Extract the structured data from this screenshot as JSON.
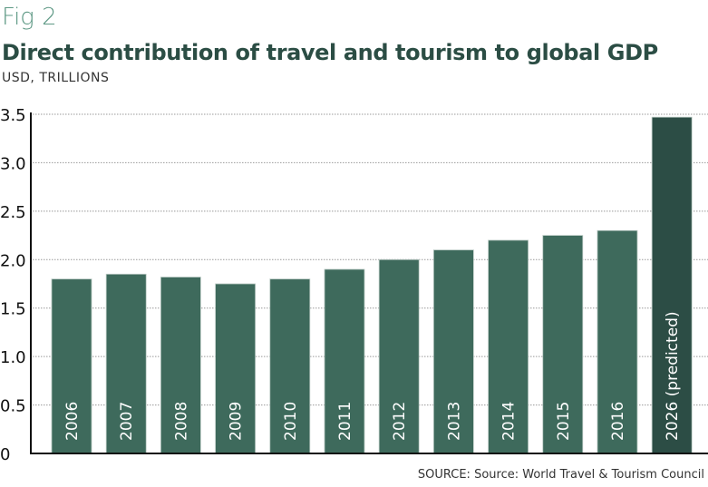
{
  "fig_label": "Fig 2",
  "source": "SOURCE: Source: World Travel & Tourism Council",
  "colors": {
    "bar": "#3e6a5c",
    "predicted_bar": "#2c4d45",
    "title": "#2b4d44",
    "fig_label": "#5e9985"
  },
  "chart_data": {
    "type": "bar",
    "title": "Direct contribution of travel and tourism to global GDP",
    "subtitle": "USD, TRILLIONS",
    "categories": [
      "2006",
      "2007",
      "2008",
      "2009",
      "2010",
      "2011",
      "2012",
      "2013",
      "2014",
      "2015",
      "2016",
      "2026 (predicted)"
    ],
    "values": [
      1.8,
      1.85,
      1.82,
      1.75,
      1.8,
      1.9,
      2.0,
      2.1,
      2.2,
      2.25,
      2.3,
      3.47
    ],
    "ylim": [
      0,
      3.5
    ],
    "yticks": [
      "0",
      "0.5",
      "1.0",
      "1.5",
      "2.0",
      "2.5",
      "3.0",
      "3.5"
    ],
    "grid": true,
    "category_labels_inside_bars": true
  }
}
